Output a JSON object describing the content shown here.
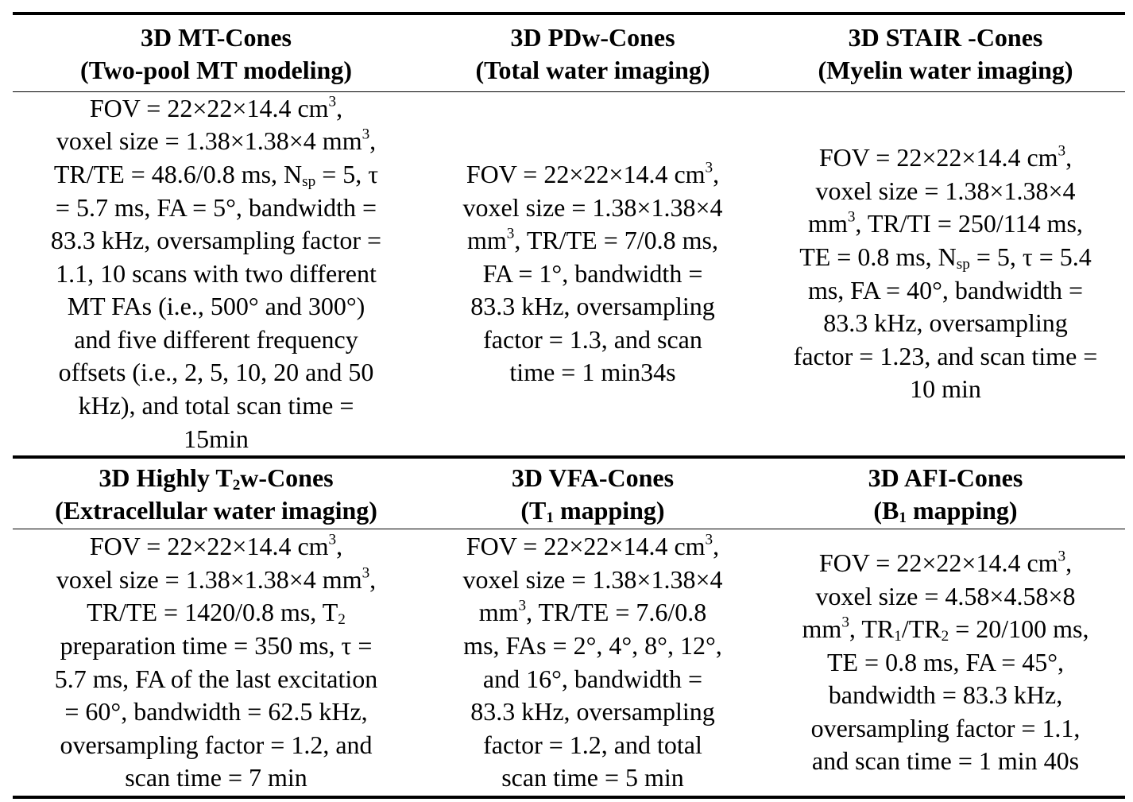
{
  "section1": {
    "headers": [
      {
        "title": "3D MT-Cones",
        "subtitle": "(Two-pool MT modeling)"
      },
      {
        "title": "3D PDw-Cones",
        "subtitle": "(Total water imaging)"
      },
      {
        "title": "3D STAIR -Cones",
        "subtitle": "(Myelin water imaging)"
      }
    ],
    "cells": [
      [
        [
          "FOV = 22×22×14.4 cm",
          "3",
          ","
        ],
        [
          "voxel size = 1.38×1.38×4 mm",
          "3",
          ","
        ],
        [
          "TR/TE = 48.6/0.8 ms, N",
          "sp",
          " = 5, τ"
        ],
        [
          "= 5.7 ms, FA = 5°, bandwidth ="
        ],
        [
          "83.3 kHz, oversampling factor ="
        ],
        [
          "1.1, 10 scans with two different"
        ],
        [
          "MT FAs (i.e., 500° and 300°)"
        ],
        [
          "and five different frequency"
        ],
        [
          "offsets (i.e., 2, 5, 10, 20 and 50"
        ],
        [
          "kHz), and total scan time ="
        ],
        [
          "15min"
        ]
      ],
      [
        [
          "FOV = 22×22×14.4 cm",
          "3",
          ","
        ],
        [
          "voxel size = 1.38×1.38×4"
        ],
        [
          "mm",
          "3",
          ", TR/TE = 7/0.8 ms,"
        ],
        [
          "FA = 1°, bandwidth ="
        ],
        [
          "83.3 kHz, oversampling"
        ],
        [
          "factor = 1.3, and scan"
        ],
        [
          "time = 1 min34s"
        ]
      ],
      [
        [
          "FOV = 22×22×14.4 cm",
          "3",
          ","
        ],
        [
          "voxel size = 1.38×1.38×4"
        ],
        [
          "mm",
          "3",
          ", TR/TI = 250/114 ms,"
        ],
        [
          "TE = 0.8 ms, N",
          "sp",
          " = 5, τ = 5.4"
        ],
        [
          "ms, FA = 40°, bandwidth ="
        ],
        [
          "83.3 kHz, oversampling"
        ],
        [
          "factor = 1.23, and scan time ="
        ],
        [
          "10 min"
        ]
      ]
    ]
  },
  "section2": {
    "headers": [
      {
        "title_a": "3D Highly T",
        "title_sub": "2",
        "title_b": "w-Cones",
        "subtitle": "(Extracellular water imaging)"
      },
      {
        "title": "3D VFA-Cones",
        "subtitle_a": "(T",
        "subtitle_sub": "1",
        "subtitle_b": " mapping)"
      },
      {
        "title": "3D AFI-Cones",
        "subtitle_a": "(B",
        "subtitle_sub": "1",
        "subtitle_b": " mapping)"
      }
    ],
    "cells": [
      [
        [
          "FOV = 22×22×14.4 cm",
          "3",
          ","
        ],
        [
          "voxel size = 1.38×1.38×4 mm",
          "3",
          ","
        ],
        [
          "TR/TE = 1420/0.8 ms, T",
          "2",
          ""
        ],
        [
          "preparation time = 350 ms, τ ="
        ],
        [
          "5.7 ms, FA of the last excitation"
        ],
        [
          "= 60°, bandwidth = 62.5 kHz,"
        ],
        [
          "oversampling factor = 1.2, and"
        ],
        [
          "scan time = 7 min"
        ]
      ],
      [
        [
          "FOV = 22×22×14.4 cm",
          "3",
          ","
        ],
        [
          "voxel size = 1.38×1.38×4"
        ],
        [
          "mm",
          "3",
          ", TR/TE = 7.6/0.8"
        ],
        [
          "ms, FAs = 2°, 4°, 8°, 12°,"
        ],
        [
          "and 16°, bandwidth ="
        ],
        [
          "83.3 kHz, oversampling"
        ],
        [
          "factor = 1.2, and total"
        ],
        [
          "scan time = 5 min"
        ]
      ],
      [
        [
          "FOV = 22×22×14.4 cm",
          "3",
          ","
        ],
        [
          "voxel size = 4.58×4.58×8"
        ],
        [
          "mm",
          "3",
          ", TR",
          "1",
          "/TR",
          "2",
          " = 20/100 ms,"
        ],
        [
          "TE = 0.8 ms, FA = 45°,"
        ],
        [
          "bandwidth = 83.3 kHz,"
        ],
        [
          "oversampling factor = 1.1,"
        ],
        [
          "and scan time = 1 min 40s"
        ]
      ]
    ]
  }
}
